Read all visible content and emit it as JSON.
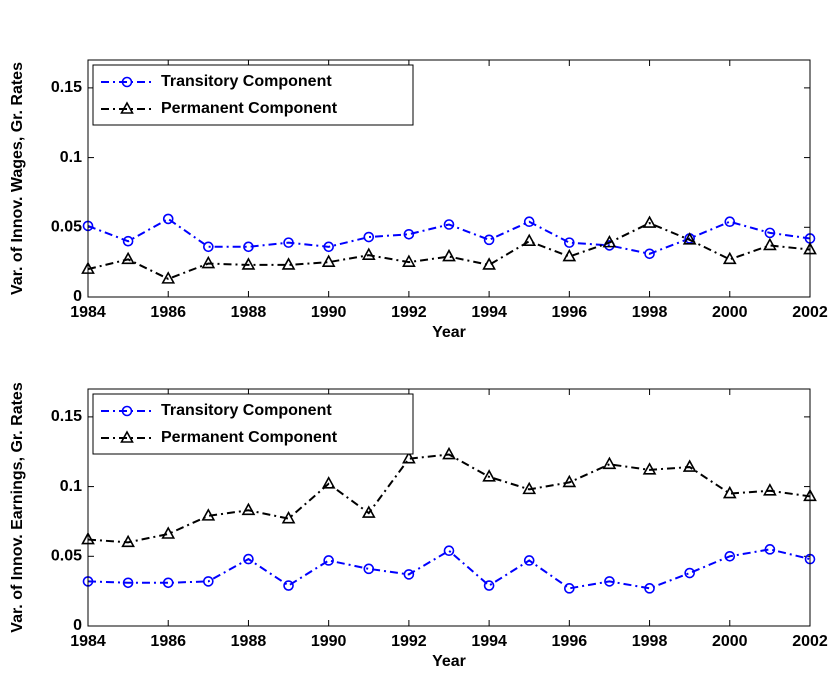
{
  "chart_data": [
    {
      "type": "line",
      "xlabel": "Year",
      "ylabel": "Var. of Innov. Wages, Gr. Rates",
      "x": [
        1984,
        1985,
        1986,
        1987,
        1988,
        1989,
        1990,
        1991,
        1992,
        1993,
        1994,
        1995,
        1996,
        1997,
        1998,
        1999,
        2000,
        2001,
        2002
      ],
      "series": [
        {
          "name": "Transitory Component",
          "color": "#0000ff",
          "marker": "circle",
          "values": [
            0.051,
            0.04,
            0.056,
            0.036,
            0.036,
            0.039,
            0.036,
            0.043,
            0.045,
            0.052,
            0.041,
            0.054,
            0.039,
            0.037,
            0.031,
            0.042,
            0.054,
            0.046,
            0.042
          ]
        },
        {
          "name": "Permanent Component",
          "color": "#000000",
          "marker": "triangle",
          "values": [
            0.02,
            0.027,
            0.013,
            0.024,
            0.023,
            0.023,
            0.025,
            0.03,
            0.025,
            0.029,
            0.023,
            0.04,
            0.029,
            0.039,
            0.053,
            0.041,
            0.027,
            0.037,
            0.034
          ]
        }
      ],
      "xlim": [
        1984,
        2002
      ],
      "xticks": [
        1984,
        1986,
        1988,
        1990,
        1992,
        1994,
        1996,
        1998,
        2000,
        2002
      ],
      "ylim": [
        0,
        0.17
      ],
      "yticks": [
        0,
        0.05,
        0.1,
        0.15
      ],
      "grid": false,
      "legend": "top-left"
    },
    {
      "type": "line",
      "xlabel": "Year",
      "ylabel": "Var. of Innov. Earnings, Gr. Rates",
      "x": [
        1984,
        1985,
        1986,
        1987,
        1988,
        1989,
        1990,
        1991,
        1992,
        1993,
        1994,
        1995,
        1996,
        1997,
        1998,
        1999,
        2000,
        2001,
        2002
      ],
      "series": [
        {
          "name": "Transitory Component",
          "color": "#0000ff",
          "marker": "circle",
          "values": [
            0.032,
            0.031,
            0.031,
            0.032,
            0.048,
            0.029,
            0.047,
            0.041,
            0.037,
            0.054,
            0.029,
            0.047,
            0.027,
            0.032,
            0.027,
            0.038,
            0.05,
            0.055,
            0.048
          ]
        },
        {
          "name": "Permanent Component",
          "color": "#000000",
          "marker": "triangle",
          "values": [
            0.062,
            0.06,
            0.066,
            0.079,
            0.083,
            0.077,
            0.102,
            0.081,
            0.12,
            0.123,
            0.107,
            0.098,
            0.103,
            0.116,
            0.112,
            0.114,
            0.095,
            0.097,
            0.093
          ]
        }
      ],
      "xlim": [
        1984,
        2002
      ],
      "xticks": [
        1984,
        1986,
        1988,
        1990,
        1992,
        1994,
        1996,
        1998,
        2000,
        2002
      ],
      "ylim": [
        0,
        0.17
      ],
      "yticks": [
        0,
        0.05,
        0.1,
        0.15
      ],
      "grid": false,
      "legend": "top-left"
    }
  ]
}
